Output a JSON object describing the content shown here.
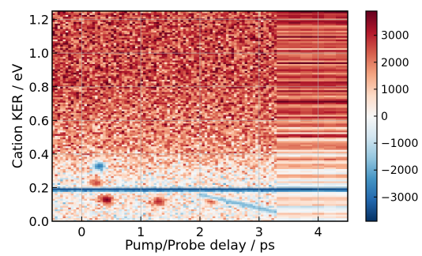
{
  "chart_data": {
    "type": "heatmap",
    "title": "",
    "xlabel": "Pump/Probe delay / ps",
    "ylabel": "Cation KER / eV",
    "xlim": [
      -0.5,
      4.5
    ],
    "ylim": [
      0.0,
      1.25
    ],
    "x_ticks": [
      0,
      1,
      2,
      3,
      4
    ],
    "x_tick_labels": [
      "0",
      "1",
      "2",
      "3",
      "4"
    ],
    "y_ticks": [
      0.0,
      0.2,
      0.4,
      0.6,
      0.8,
      1.0,
      1.2
    ],
    "y_tick_labels": [
      "0.0",
      "0.2",
      "0.4",
      "0.6",
      "0.8",
      "1.0",
      "1.2"
    ],
    "grid": true,
    "colormap": "RdBu_r",
    "colorbar": {
      "min": -3900,
      "max": 3900,
      "ticks": [
        3000,
        2000,
        1000,
        0,
        -1000,
        -2000,
        -3000
      ],
      "tick_labels": [
        "3000",
        "2000",
        "1000",
        "0",
        "−1000",
        "−2000",
        "−3000"
      ]
    },
    "features": [
      {
        "kind": "background_gradient",
        "description_values": {
          "ker_high_mean": 2500,
          "ker_mid_mean": 1500
        }
      },
      {
        "kind": "band",
        "ker_center": 0.19,
        "ker_width": 0.012,
        "value": -3600,
        "x_range": [
          -0.5,
          4.5
        ]
      },
      {
        "kind": "blob",
        "x": 0.42,
        "ker": 0.13,
        "value": 3800
      },
      {
        "kind": "blob",
        "x": 1.3,
        "ker": 0.12,
        "value": 3000
      },
      {
        "kind": "blob",
        "x": 2.2,
        "ker": 0.13,
        "value": 3000
      },
      {
        "kind": "blob",
        "x": 0.3,
        "ker": 0.33,
        "value": -2800
      },
      {
        "kind": "blob",
        "x": 0.25,
        "ker": 0.23,
        "value": 2600
      },
      {
        "kind": "decaying_tail",
        "x_range": [
          2.0,
          3.3
        ],
        "ker_range": [
          0.05,
          0.15
        ],
        "value": -2000
      }
    ],
    "regions": {
      "fine_x_range": [
        -0.5,
        3.3
      ],
      "coarse_x_range": [
        3.3,
        4.5
      ]
    }
  },
  "colors": {
    "axis": "#000000",
    "grid": "#b0b0b0",
    "cmap_stops": [
      "#053061",
      "#2166ac",
      "#4393c3",
      "#92c5de",
      "#d1e5f0",
      "#f7f7f7",
      "#fddbc7",
      "#f4a582",
      "#d6604d",
      "#b2182b",
      "#67001f"
    ]
  }
}
